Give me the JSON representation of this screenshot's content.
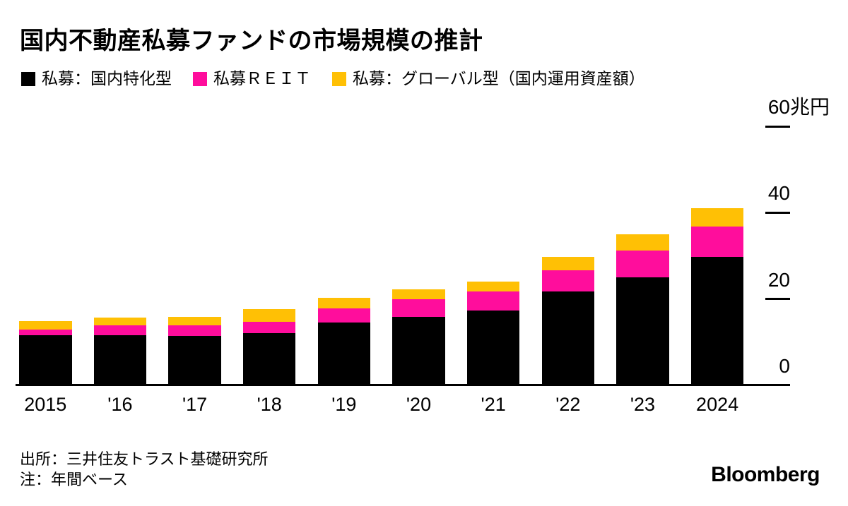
{
  "title": "国内不動産私募ファンドの市場規模の推計",
  "source": "出所：三井住友トラスト基礎研究所",
  "note": "注：年間ベース",
  "brand": "Bloomberg",
  "colors": {
    "domestic": "#000000",
    "reit": "#ff0d9c",
    "global": "#ffc005",
    "axis": "#000000"
  },
  "chart_data": {
    "type": "bar",
    "stacked": true,
    "title": "国内不動産私募ファンドの市場規模の推計",
    "xlabel": "",
    "ylabel": "兆円",
    "unit": "兆円",
    "ylim": [
      0,
      60
    ],
    "grid": false,
    "legend_position": "top",
    "categories": [
      "2015",
      "'16",
      "'17",
      "'18",
      "'19",
      "'20",
      "'21",
      "'22",
      "'23",
      "2024"
    ],
    "series": [
      {
        "name": "私募：国内特化型",
        "color": "#000000",
        "values": [
          11.6,
          11.6,
          11.4,
          12.1,
          14.5,
          15.8,
          17.4,
          21.7,
          25.1,
          29.7
        ]
      },
      {
        "name": "私募ＲＥＩＴ",
        "color": "#ff0d9c",
        "values": [
          1.4,
          2.3,
          2.5,
          2.6,
          3.4,
          4.2,
          4.4,
          5.0,
          6.1,
          7.1
        ]
      },
      {
        "name": "私募：グローバル型（国内運用資産額）",
        "color": "#ffc005",
        "values": [
          1.9,
          1.8,
          2.0,
          2.9,
          2.3,
          2.3,
          2.3,
          3.0,
          3.8,
          4.2
        ]
      }
    ],
    "totals": [
      14.9,
      15.7,
      15.9,
      17.6,
      20.2,
      22.3,
      24.1,
      29.7,
      35.0,
      41.0
    ],
    "y_ticks": [
      {
        "value": 60,
        "label": "60",
        "suffix": "兆円"
      },
      {
        "value": 40,
        "label": "40",
        "suffix": ""
      },
      {
        "value": 20,
        "label": "20",
        "suffix": ""
      },
      {
        "value": 0,
        "label": "0",
        "suffix": ""
      }
    ]
  }
}
